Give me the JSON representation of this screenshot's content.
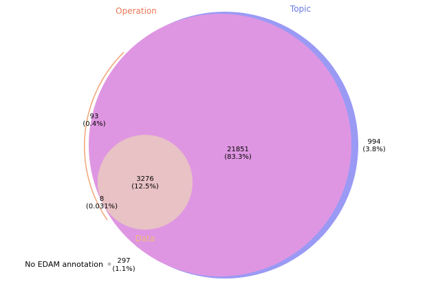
{
  "sets": [
    {
      "key": "operation",
      "name": "Operation",
      "color": "#ee7755"
    },
    {
      "key": "topic",
      "name": "Topic",
      "color": "#6677dd"
    },
    {
      "key": "data",
      "name": "Data",
      "color": "#eebb77"
    }
  ],
  "fills": {
    "topic": "#9a9af5",
    "operation_topic": "#df96e2",
    "data": "#e8c2c5"
  },
  "regions": [
    {
      "key": "operation_only",
      "count": "93",
      "percent": "(0.4%)"
    },
    {
      "key": "operation_topic",
      "count": "21851",
      "percent": "(83.3%)"
    },
    {
      "key": "topic_only",
      "count": "994",
      "percent": "(3.8%)"
    },
    {
      "key": "operation_topic_data",
      "count": "3276",
      "percent": "(12.5%)"
    },
    {
      "key": "operation_data",
      "count": "8",
      "percent": "(0.031%)"
    }
  ],
  "unannotated": {
    "label": "No EDAM annotation",
    "count": "297",
    "percent": "(1.1%)",
    "marker_color": "#bbbbbb"
  }
}
